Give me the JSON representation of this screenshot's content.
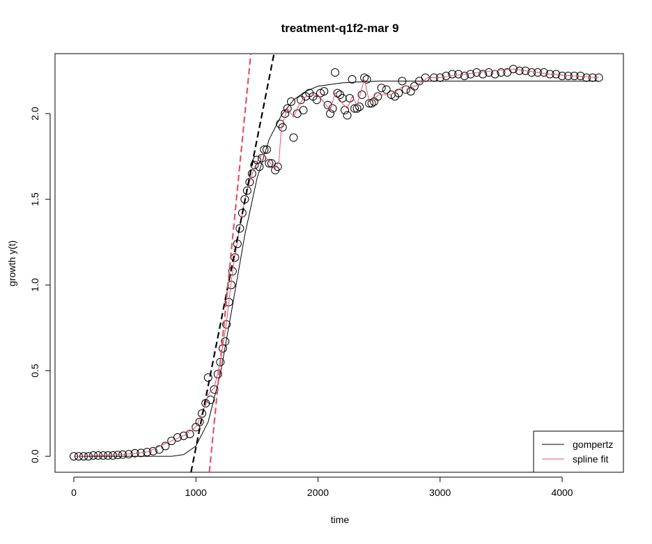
{
  "chart_data": {
    "type": "scatter",
    "title": "treatment-q1f2-mar 9",
    "xlabel": "time",
    "ylabel": "growth y(t)",
    "xlim": [
      -154,
      4502
    ],
    "ylim": [
      -0.093,
      2.35
    ],
    "xticks": [
      0,
      1000,
      2000,
      3000,
      4000
    ],
    "yticks": [
      {
        "value": 0,
        "label": "0.0"
      },
      {
        "value": 0.5,
        "label": "0.5"
      },
      {
        "value": 1,
        "label": "1.0"
      },
      {
        "value": 1.5,
        "label": "1.5"
      },
      {
        "value": 2,
        "label": "2.0"
      }
    ],
    "legend": "bottom-right",
    "points": {
      "color": "#000000",
      "x": [
        0,
        40,
        80,
        120,
        160,
        200,
        240,
        280,
        320,
        360,
        400,
        450,
        500,
        550,
        600,
        650,
        700,
        750,
        800,
        850,
        900,
        950,
        1000,
        1030,
        1050,
        1080,
        1100,
        1120,
        1150,
        1180,
        1200,
        1220,
        1240,
        1250,
        1270,
        1290,
        1300,
        1320,
        1340,
        1360,
        1380,
        1400,
        1420,
        1440,
        1460,
        1480,
        1500,
        1520,
        1540,
        1560,
        1580,
        1600,
        1620,
        1650,
        1670,
        1690,
        1710,
        1730,
        1750,
        1780,
        1800,
        1830,
        1860,
        1880,
        1900,
        1930,
        1960,
        1990,
        2020,
        2050,
        2080,
        2100,
        2120,
        2140,
        2160,
        2180,
        2200,
        2220,
        2240,
        2260,
        2280,
        2300,
        2320,
        2340,
        2360,
        2380,
        2400,
        2420,
        2440,
        2460,
        2490,
        2520,
        2560,
        2600,
        2630,
        2660,
        2690,
        2720,
        2760,
        2790,
        2830,
        2880,
        2950,
        3000,
        3050,
        3100,
        3150,
        3200,
        3250,
        3300,
        3350,
        3400,
        3450,
        3500,
        3550,
        3600,
        3650,
        3700,
        3750,
        3800,
        3850,
        3900,
        3950,
        4000,
        4050,
        4100,
        4150,
        4200,
        4250,
        4300
      ],
      "values": [
        0.0,
        0.0,
        0.0,
        0.0,
        0.005,
        0.005,
        0.005,
        0.005,
        0.005,
        0.008,
        0.01,
        0.012,
        0.018,
        0.02,
        0.025,
        0.03,
        0.04,
        0.06,
        0.09,
        0.11,
        0.12,
        0.13,
        0.17,
        0.2,
        0.25,
        0.31,
        0.46,
        0.33,
        0.39,
        0.48,
        0.55,
        0.63,
        0.67,
        0.77,
        0.9,
        1.0,
        1.08,
        1.16,
        1.24,
        1.33,
        1.42,
        1.5,
        1.55,
        1.6,
        1.65,
        1.7,
        1.73,
        1.69,
        1.74,
        1.79,
        1.79,
        1.71,
        1.71,
        1.67,
        1.69,
        1.94,
        1.92,
        2.0,
        2.03,
        2.07,
        1.86,
        2.0,
        2.08,
        2.02,
        2.1,
        2.12,
        2.1,
        2.08,
        2.12,
        2.13,
        2.05,
        2.0,
        2.03,
        2.24,
        2.12,
        2.11,
        2.09,
        2.02,
        1.99,
        2.09,
        2.2,
        2.03,
        2.03,
        2.04,
        2.11,
        2.21,
        2.2,
        2.06,
        2.06,
        2.07,
        2.1,
        2.15,
        2.14,
        2.11,
        2.1,
        2.12,
        2.19,
        2.14,
        2.13,
        2.16,
        2.19,
        2.21,
        2.21,
        2.21,
        2.22,
        2.23,
        2.23,
        2.22,
        2.23,
        2.24,
        2.23,
        2.24,
        2.23,
        2.24,
        2.24,
        2.26,
        2.25,
        2.25,
        2.24,
        2.24,
        2.24,
        2.23,
        2.23,
        2.22,
        2.22,
        2.22,
        2.22,
        2.21,
        2.21,
        2.21
      ]
    },
    "series": [
      {
        "name": "gompertz",
        "color": "#000000",
        "x": [
          0,
          800,
          900,
          1000,
          1100,
          1200,
          1300,
          1400,
          1500,
          1600,
          1700,
          1800,
          1900,
          2000,
          2200,
          2500,
          3000,
          4300
        ],
        "values": [
          0,
          0,
          0.01,
          0.06,
          0.2,
          0.48,
          0.88,
          1.29,
          1.62,
          1.85,
          1.99,
          2.08,
          2.13,
          2.16,
          2.18,
          2.19,
          2.19,
          2.19
        ]
      },
      {
        "name": "spline fit",
        "color": "#DF536B",
        "x": [
          0,
          400,
          600,
          800,
          900,
          1000,
          1080,
          1100,
          1150,
          1200,
          1250,
          1300,
          1350,
          1400,
          1450,
          1500,
          1550,
          1600,
          1650,
          1680,
          1700,
          1750,
          1800,
          1850,
          1900,
          2000,
          2100,
          2140,
          2200,
          2240,
          2280,
          2320,
          2380,
          2420,
          2500,
          2600,
          2700,
          2800,
          2900,
          3000,
          3300,
          3600,
          3900,
          4300
        ],
        "values": [
          0,
          0.01,
          0.025,
          0.09,
          0.12,
          0.17,
          0.3,
          0.36,
          0.4,
          0.55,
          0.78,
          1.08,
          1.3,
          1.5,
          1.63,
          1.72,
          1.77,
          1.72,
          1.68,
          1.72,
          1.92,
          2.03,
          1.98,
          2.06,
          2.1,
          2.11,
          2.02,
          2.12,
          2.06,
          2.03,
          2.1,
          2.05,
          2.2,
          2.07,
          2.11,
          2.11,
          2.16,
          2.16,
          2.21,
          2.21,
          2.24,
          2.26,
          2.23,
          2.21
        ]
      }
    ],
    "tangents": [
      {
        "color": "#000000",
        "x": [
          960,
          1640
        ],
        "values": [
          -0.093,
          2.35
        ]
      },
      {
        "color": "#DF536B",
        "x": [
          1110,
          1450
        ],
        "values": [
          -0.093,
          2.35
        ]
      }
    ]
  }
}
